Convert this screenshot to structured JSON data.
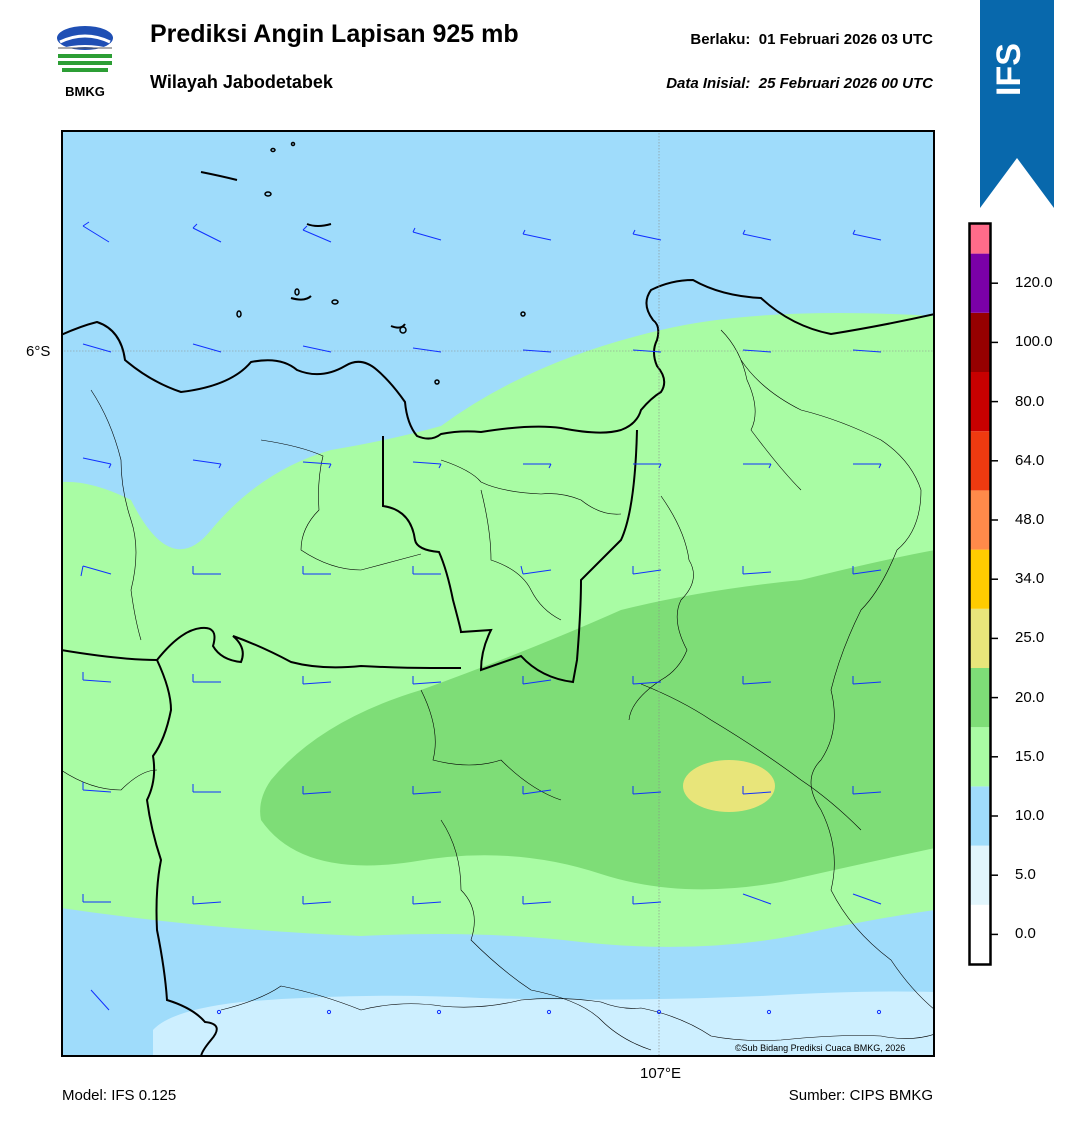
{
  "header": {
    "title": "Prediksi Angin Lapisan 925 mb",
    "subtitle": "Wilayah Jabodetabek",
    "valid_label": "Berlaku:",
    "valid_value": "01 Februari 2026 03 UTC",
    "init_label": "Data Inisial:",
    "init_value": "25 Februari 2026 00 UTC",
    "logo_text": "BMKG",
    "model_badge": "IFS"
  },
  "map": {
    "lat_label": "6°S",
    "lon_label": "107°E",
    "credit": "©Sub Bidang Prediksi Cuaca BMKG, 2026"
  },
  "footer": {
    "model": "Model: IFS 0.125",
    "source": "Sumber: CIPS BMKG"
  },
  "colorbar": {
    "levels": [
      "0.0",
      "5.0",
      "10.0",
      "15.0",
      "20.0",
      "25.0",
      "34.0",
      "48.0",
      "64.0",
      "80.0",
      "100.0",
      "120.0"
    ],
    "colors": [
      "#ffffff",
      "#e1f5fc",
      "#9fdcfb",
      "#a9fca4",
      "#7edd77",
      "#e8e57a",
      "#ffcc00",
      "#ff8a4a",
      "#ee3a10",
      "#c80000",
      "#960000",
      "#7a00a8",
      "#ff6b8a"
    ]
  },
  "colors": {
    "sea_band": "#9fdcfb",
    "light_band": "#cdefff",
    "green_light": "#a9fca4",
    "green_mid": "#7edd77",
    "yellow": "#e8e57a",
    "barb": "#1030ff",
    "banner": "#0868ac"
  }
}
